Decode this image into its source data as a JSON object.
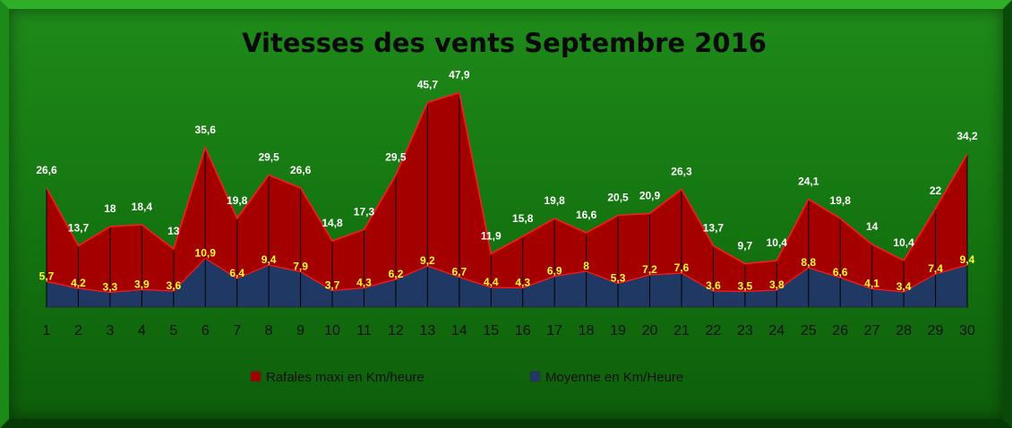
{
  "chart_data": {
    "type": "area",
    "title": "Vitesses des vents Septembre 2016",
    "xlabel": "",
    "ylabel": "",
    "categories": [
      "1",
      "2",
      "3",
      "4",
      "5",
      "6",
      "7",
      "8",
      "9",
      "10",
      "11",
      "12",
      "13",
      "14",
      "15",
      "16",
      "17",
      "18",
      "19",
      "20",
      "21",
      "22",
      "23",
      "24",
      "25",
      "26",
      "27",
      "28",
      "29",
      "30"
    ],
    "series": [
      {
        "name": "Rafales maxi en Km/heure",
        "color": "#a50000",
        "line_color": "#ff1a1a",
        "values": [
          26.6,
          13.7,
          18,
          18.4,
          13,
          35.6,
          19.8,
          29.5,
          26.6,
          14.8,
          17.3,
          29.5,
          45.7,
          47.9,
          11.9,
          15.8,
          19.8,
          16.6,
          20.5,
          20.9,
          26.3,
          13.7,
          9.7,
          10.4,
          24.1,
          19.8,
          14,
          10.4,
          22,
          34.2
        ],
        "labels": [
          "26,6",
          "13,7",
          "18",
          "18,4",
          "13",
          "35,6",
          "19,8",
          "29,5",
          "26,6",
          "14,8",
          "17,3",
          "29,5",
          "45,7",
          "47,9",
          "11,9",
          "15,8",
          "19,8",
          "16,6",
          "20,5",
          "20,9",
          "26,3",
          "13,7",
          "9,7",
          "10,4",
          "24,1",
          "19,8",
          "14",
          "10,4",
          "22",
          "34,2"
        ]
      },
      {
        "name": "Moyenne en Km/Heure",
        "color": "#1f3864",
        "line_color": "#ff1a1a",
        "values": [
          5.7,
          4.2,
          3.3,
          3.9,
          3.6,
          10.9,
          6.4,
          9.4,
          7.9,
          3.7,
          4.3,
          6.2,
          9.2,
          6.7,
          4.4,
          4.3,
          6.9,
          8,
          5.3,
          7.2,
          7.6,
          3.6,
          3.5,
          3.8,
          8.8,
          6.6,
          4.1,
          3.4,
          7.4,
          9.4
        ],
        "labels": [
          "5,7",
          "4,2",
          "3,3",
          "3,9",
          "3,6",
          "10,9",
          "6,4",
          "9,4",
          "7,9",
          "3,7",
          "4,3",
          "6,2",
          "9,2",
          "6,7",
          "4,4",
          "4,3",
          "6,9",
          "8",
          "5,3",
          "7,2",
          "7,6",
          "3,6",
          "3,5",
          "3,8",
          "8,8",
          "6,6",
          "4,1",
          "3,4",
          "7,4",
          "9,4"
        ]
      }
    ],
    "ylim": [
      0,
      50
    ],
    "grid": false,
    "drop_lines": true,
    "legend_position": "bottom"
  }
}
